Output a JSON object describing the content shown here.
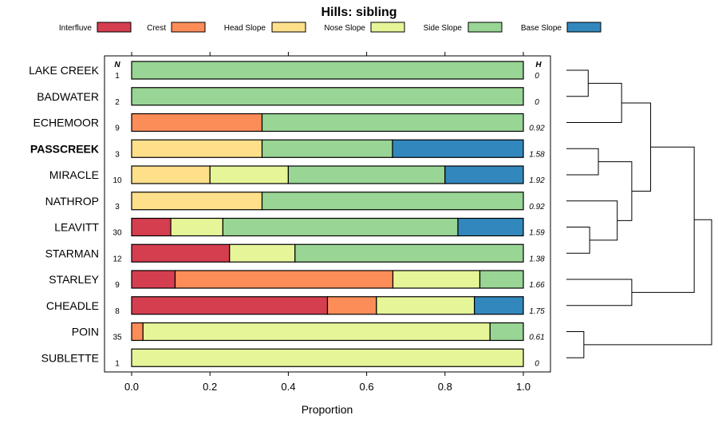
{
  "chart_data": {
    "type": "bar",
    "orientation": "horizontal-stacked",
    "title": "Hills: sibling",
    "xlabel": "Proportion",
    "xlim": [
      0,
      1
    ],
    "xticks": [
      "0.0",
      "0.2",
      "0.4",
      "0.6",
      "0.8",
      "1.0"
    ],
    "xtick_values": [
      0,
      0.2,
      0.4,
      0.6,
      0.8,
      1.0
    ],
    "n_header": "N",
    "h_header": "H",
    "legend": [
      {
        "name": "Interfluve",
        "color": "#d53e4f"
      },
      {
        "name": "Crest",
        "color": "#fc8d59"
      },
      {
        "name": "Head Slope",
        "color": "#fee08b"
      },
      {
        "name": "Nose Slope",
        "color": "#e6f598"
      },
      {
        "name": "Side Slope",
        "color": "#99d594"
      },
      {
        "name": "Base Slope",
        "color": "#3288bd"
      }
    ],
    "categories": [
      "LAKE CREEK",
      "BADWATER",
      "ECHEMOOR",
      "PASSCREEK",
      "MIRACLE",
      "NATHROP",
      "LEAVITT",
      "STARMAN",
      "STARLEY",
      "CHEADLE",
      "POIN",
      "SUBLETTE"
    ],
    "highlight": "PASSCREEK",
    "rows": [
      {
        "name": "LAKE CREEK",
        "n": "1",
        "h": "0",
        "values": [
          0,
          0,
          0,
          0,
          1,
          0
        ]
      },
      {
        "name": "BADWATER",
        "n": "2",
        "h": "0",
        "values": [
          0,
          0,
          0,
          0,
          1,
          0
        ]
      },
      {
        "name": "ECHEMOOR",
        "n": "9",
        "h": "0.92",
        "values": [
          0,
          0.333,
          0,
          0,
          0.667,
          0
        ]
      },
      {
        "name": "PASSCREEK",
        "n": "3",
        "h": "1.58",
        "values": [
          0,
          0,
          0.333,
          0,
          0.333,
          0.334
        ]
      },
      {
        "name": "MIRACLE",
        "n": "10",
        "h": "1.92",
        "values": [
          0,
          0,
          0.2,
          0.2,
          0.4,
          0.2
        ]
      },
      {
        "name": "NATHROP",
        "n": "3",
        "h": "0.92",
        "values": [
          0,
          0,
          0.333,
          0,
          0.667,
          0
        ]
      },
      {
        "name": "LEAVITT",
        "n": "30",
        "h": "1.59",
        "values": [
          0.1,
          0,
          0,
          0.133,
          0.6,
          0.167
        ]
      },
      {
        "name": "STARMAN",
        "n": "12",
        "h": "1.38",
        "values": [
          0.25,
          0,
          0,
          0.167,
          0.583,
          0
        ]
      },
      {
        "name": "STARLEY",
        "n": "9",
        "h": "1.66",
        "values": [
          0.111,
          0.556,
          0,
          0.222,
          0.111,
          0
        ]
      },
      {
        "name": "CHEADLE",
        "n": "8",
        "h": "1.75",
        "values": [
          0.5,
          0.125,
          0,
          0.25,
          0,
          0.125
        ]
      },
      {
        "name": "POIN",
        "n": "35",
        "h": "0.61",
        "values": [
          0,
          0.029,
          0,
          0.886,
          0.085,
          0
        ]
      },
      {
        "name": "SUBLETTE",
        "n": "1",
        "h": "0",
        "values": [
          0,
          0,
          0,
          1,
          0,
          0
        ]
      }
    ],
    "dendrogram_merges": [
      {
        "a": 0,
        "b": 1,
        "height": 0.15
      },
      {
        "a": "c0",
        "b": 2,
        "height": 0.38
      },
      {
        "a": 3,
        "b": 4,
        "height": 0.22
      },
      {
        "a": 6,
        "b": 7,
        "height": 0.16
      },
      {
        "a": 5,
        "b": "c3",
        "height": 0.35
      },
      {
        "a": "c2",
        "b": "c4",
        "height": 0.45
      },
      {
        "a": "c1",
        "b": "c5",
        "height": 0.58
      },
      {
        "a": 8,
        "b": 9,
        "height": 0.45
      },
      {
        "a": 10,
        "b": 11,
        "height": 0.12
      },
      {
        "a": "c6",
        "b": "c7",
        "height": 0.88
      },
      {
        "a": "c9",
        "b": "c8",
        "height": 1.0
      }
    ]
  }
}
